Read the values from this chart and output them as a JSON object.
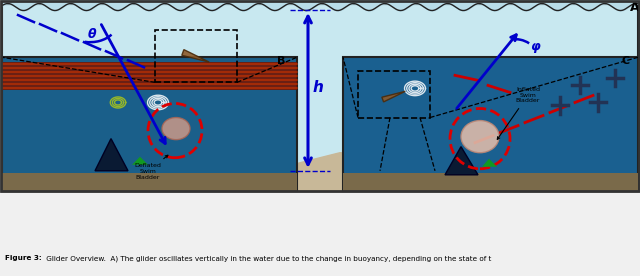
{
  "fig_width": 6.4,
  "fig_height": 2.76,
  "dpi": 100,
  "bg_water_light": "#c8e8f0",
  "panel_B_color": "#1a5f8a",
  "panel_C_color": "#1a6090",
  "border_color": "#222222",
  "theta_label": "θ",
  "phi_label": "φ",
  "h_label": "h",
  "panel_A_label": "A",
  "panel_B_label": "B",
  "panel_C_label": "C",
  "deflated_label": "Deflated\nSwim\nBladder",
  "inflated_label": "Inflated\nSwim\nBladder",
  "red_circle_color": "#dd0000",
  "arrow_blue": "#0000cc",
  "arrow_red": "#cc0000",
  "dashed_blue": "#0000cc",
  "dashed_red": "#cc0000",
  "caption_text": "Figure 3: Glider Overview.  A) The glider oscillates vertically in the water due to the change in buoyancy, depending on the state of t"
}
